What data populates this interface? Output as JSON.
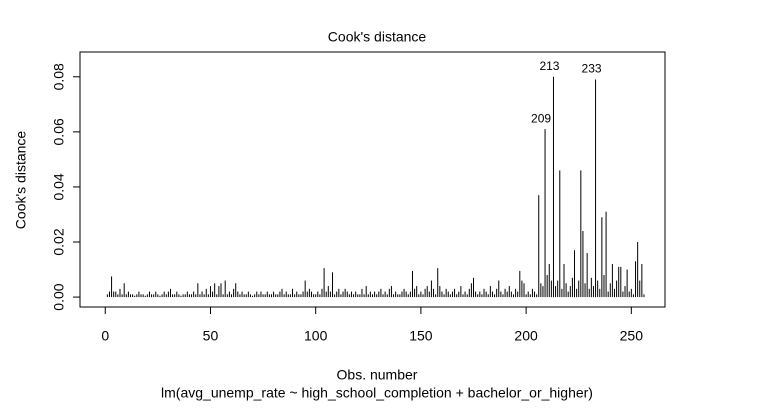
{
  "chart_data": {
    "type": "bar",
    "title": "Cook's distance",
    "x_label": "Obs. number",
    "y_label": "Cook's distance",
    "subtitle": "lm(avg_unemp_rate ~ high_school_completion + bachelor_or_higher)",
    "color": "#000000",
    "xlim": [
      -12,
      266
    ],
    "ylim": [
      -0.0036,
      0.089
    ],
    "xticks": [
      0,
      50,
      100,
      150,
      200,
      250
    ],
    "yticks": [
      {
        "value": 0,
        "label": "0.00"
      },
      0.02,
      0.04,
      0.06,
      0.08
    ],
    "x": [
      1,
      2,
      3,
      4,
      5,
      6,
      7,
      8,
      9,
      10,
      11,
      12,
      13,
      14,
      15,
      16,
      17,
      18,
      19,
      20,
      21,
      22,
      23,
      24,
      25,
      26,
      27,
      28,
      29,
      30,
      31,
      32,
      33,
      34,
      35,
      36,
      37,
      38,
      39,
      40,
      41,
      42,
      43,
      44,
      45,
      46,
      47,
      48,
      49,
      50,
      51,
      52,
      53,
      54,
      55,
      56,
      57,
      58,
      59,
      60,
      61,
      62,
      63,
      64,
      65,
      66,
      67,
      68,
      69,
      70,
      71,
      72,
      73,
      74,
      75,
      76,
      77,
      78,
      79,
      80,
      81,
      82,
      83,
      84,
      85,
      86,
      87,
      88,
      89,
      90,
      91,
      92,
      93,
      94,
      95,
      96,
      97,
      98,
      99,
      100,
      101,
      102,
      103,
      104,
      105,
      106,
      107,
      108,
      109,
      110,
      111,
      112,
      113,
      114,
      115,
      116,
      117,
      118,
      119,
      120,
      121,
      122,
      123,
      124,
      125,
      126,
      127,
      128,
      129,
      130,
      131,
      132,
      133,
      134,
      135,
      136,
      137,
      138,
      139,
      140,
      141,
      142,
      143,
      144,
      145,
      146,
      147,
      148,
      149,
      150,
      151,
      152,
      153,
      154,
      155,
      156,
      157,
      158,
      159,
      160,
      161,
      162,
      163,
      164,
      165,
      166,
      167,
      168,
      169,
      170,
      171,
      172,
      173,
      174,
      175,
      176,
      177,
      178,
      179,
      180,
      181,
      182,
      183,
      184,
      185,
      186,
      187,
      188,
      189,
      190,
      191,
      192,
      193,
      194,
      195,
      196,
      197,
      198,
      199,
      200,
      201,
      202,
      203,
      204,
      205,
      206,
      207,
      208,
      209,
      210,
      211,
      212,
      213,
      214,
      215,
      216,
      217,
      218,
      219,
      220,
      221,
      222,
      223,
      224,
      225,
      226,
      227,
      228,
      229,
      230,
      231,
      232,
      233,
      234,
      235,
      236,
      237,
      238,
      239,
      240,
      241,
      242,
      243,
      244,
      245,
      246,
      247,
      248,
      249,
      250,
      251,
      252,
      253,
      254,
      255,
      256
    ],
    "values": [
      0.001,
      0.002,
      0.0075,
      0.002,
      0.002,
      0.001,
      0.003,
      0.001,
      0.005,
      0.001,
      0.002,
      0.001,
      0.001,
      0.0005,
      0.001,
      0.002,
      0.001,
      0.001,
      0.0005,
      0.001,
      0.002,
      0.001,
      0.001,
      0.002,
      0.001,
      0.0005,
      0.001,
      0.002,
      0.001,
      0.002,
      0.003,
      0.001,
      0.001,
      0.002,
      0.001,
      0.0005,
      0.001,
      0.001,
      0.002,
      0.001,
      0.001,
      0.002,
      0.001,
      0.005,
      0.001,
      0.002,
      0.001,
      0.003,
      0.001,
      0.004,
      0.002,
      0.005,
      0.001,
      0.004,
      0.005,
      0.001,
      0.006,
      0.001,
      0.002,
      0.001,
      0.003,
      0.005,
      0.002,
      0.001,
      0.002,
      0.001,
      0.001,
      0.002,
      0.001,
      0.0005,
      0.001,
      0.002,
      0.001,
      0.002,
      0.001,
      0.001,
      0.002,
      0.001,
      0.001,
      0.002,
      0.001,
      0.001,
      0.002,
      0.003,
      0.001,
      0.002,
      0.001,
      0.001,
      0.003,
      0.001,
      0.002,
      0.001,
      0.001,
      0.002,
      0.006,
      0.002,
      0.003,
      0.002,
      0.001,
      0.001,
      0.002,
      0.001,
      0.003,
      0.0105,
      0.002,
      0.004,
      0.002,
      0.009,
      0.001,
      0.002,
      0.003,
      0.001,
      0.002,
      0.003,
      0.002,
      0.001,
      0.002,
      0.001,
      0.002,
      0.001,
      0.001,
      0.003,
      0.001,
      0.004,
      0.001,
      0.002,
      0.001,
      0.002,
      0.001,
      0.002,
      0.003,
      0.001,
      0.002,
      0.001,
      0.003,
      0.004,
      0.001,
      0.002,
      0.001,
      0.001,
      0.002,
      0.003,
      0.002,
      0.001,
      0.002,
      0.0095,
      0.003,
      0.004,
      0.001,
      0.002,
      0.001,
      0.003,
      0.004,
      0.002,
      0.006,
      0.003,
      0.001,
      0.0105,
      0.004,
      0.002,
      0.001,
      0.003,
      0.002,
      0.001,
      0.002,
      0.003,
      0.001,
      0.002,
      0.004,
      0.001,
      0.002,
      0.001,
      0.003,
      0.005,
      0.007,
      0.002,
      0.001,
      0.002,
      0.001,
      0.003,
      0.002,
      0.001,
      0.004,
      0.002,
      0.001,
      0.003,
      0.006,
      0.002,
      0.001,
      0.003,
      0.002,
      0.004,
      0.002,
      0.001,
      0.003,
      0.002,
      0.0095,
      0.006,
      0.005,
      0.001,
      0.002,
      0.001,
      0.003,
      0.002,
      0.001,
      0.037,
      0.005,
      0.004,
      0.061,
      0.008,
      0.012,
      0.006,
      0.08,
      0.004,
      0.006,
      0.046,
      0.003,
      0.012,
      0.005,
      0.002,
      0.004,
      0.007,
      0.017,
      0.003,
      0.006,
      0.046,
      0.024,
      0.005,
      0.016,
      0.003,
      0.007,
      0.004,
      0.079,
      0.006,
      0.003,
      0.029,
      0.008,
      0.031,
      0.002,
      0.005,
      0.012,
      0.003,
      0.006,
      0.011,
      0.011,
      0.002,
      0.004,
      0.01,
      0.002,
      0.003,
      0.001,
      0.013,
      0.02,
      0.006,
      0.012,
      0.001
    ],
    "annotations": [
      {
        "text": "209",
        "x": 209
      },
      {
        "text": "213",
        "x": 213
      },
      {
        "text": "233",
        "x": 233
      }
    ]
  }
}
